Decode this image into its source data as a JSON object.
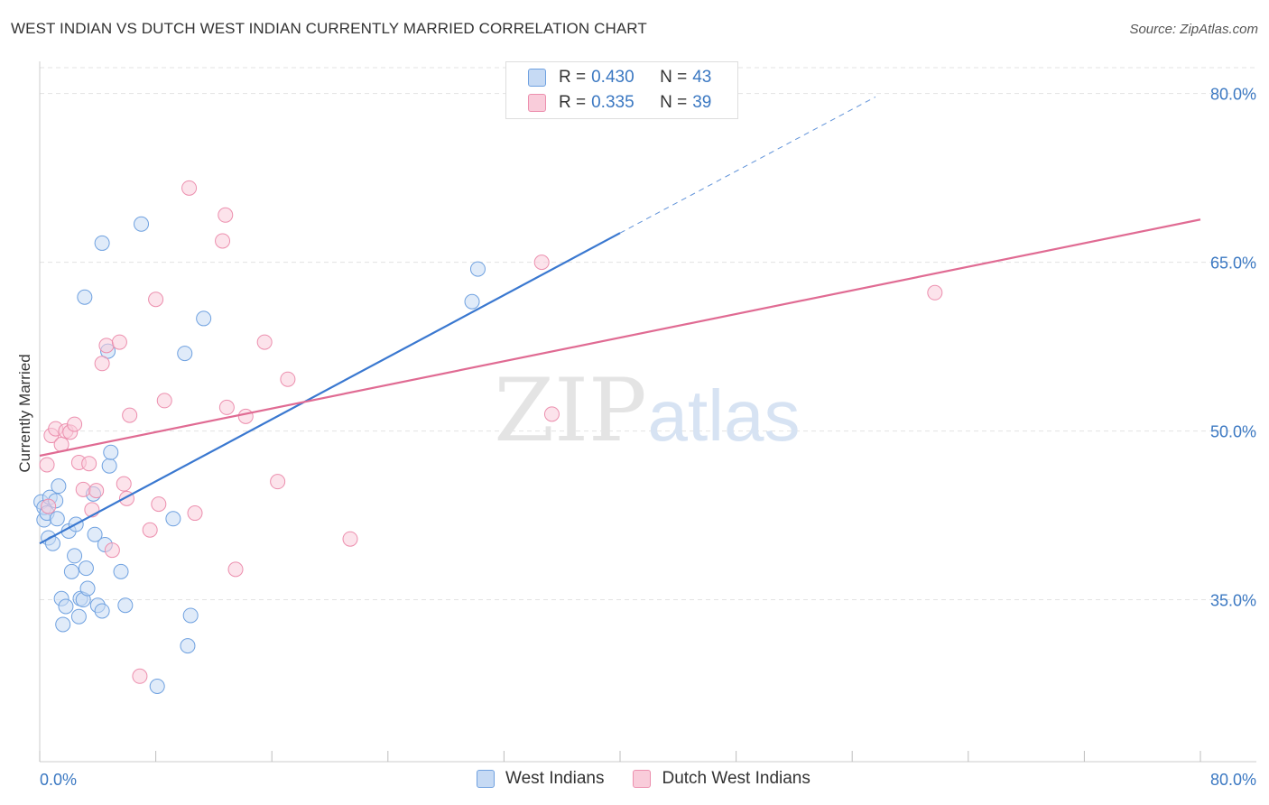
{
  "title": "WEST INDIAN VS DUTCH WEST INDIAN CURRENTLY MARRIED CORRELATION CHART",
  "source": "Source: ZipAtlas.com",
  "watermark": {
    "zip": "ZIP",
    "atlas": "atlas"
  },
  "legend": {
    "r_label": "R =",
    "n_label": "N =",
    "rows": [
      {
        "r": "0.430",
        "n": "43",
        "fill": "#c6daf4",
        "stroke": "#6fa1e0"
      },
      {
        "r": "0.335",
        "n": "39",
        "fill": "#f9ccda",
        "stroke": "#ec8fae"
      }
    ]
  },
  "bottom_legend": [
    {
      "label": "West Indians",
      "fill": "#c6daf4",
      "stroke": "#6fa1e0"
    },
    {
      "label": "Dutch West Indians",
      "fill": "#f9ccda",
      "stroke": "#ec8fae"
    }
  ],
  "chart_data": {
    "type": "scatter",
    "title": "WEST INDIAN VS DUTCH WEST INDIAN CURRENTLY MARRIED CORRELATION CHART",
    "xlabel": "",
    "ylabel": "Currently Married",
    "xlim": [
      0,
      80
    ],
    "ylim": [
      20.6,
      82.3
    ],
    "x_tick_labels": [
      "0.0%",
      "80.0%"
    ],
    "y_ticks": [
      35,
      50,
      65,
      80
    ],
    "y_tick_labels": [
      "35.0%",
      "50.0%",
      "65.0%",
      "80.0%"
    ],
    "grid": true,
    "series": [
      {
        "name": "West Indians",
        "color": "#3a78d0",
        "fill": "#c6daf4",
        "stroke": "#6fa1e0",
        "trend": {
          "x0": 0,
          "y0": 40.0,
          "x1": 40,
          "y1": 67.6,
          "dash_to_x": 57.6,
          "dash_to_y": 79.7
        },
        "points": [
          [
            0.1,
            43.7
          ],
          [
            0.3,
            42.1
          ],
          [
            0.3,
            43.2
          ],
          [
            0.5,
            42.7
          ],
          [
            0.6,
            40.5
          ],
          [
            0.7,
            44.1
          ],
          [
            0.9,
            40.0
          ],
          [
            1.1,
            43.8
          ],
          [
            1.2,
            42.2
          ],
          [
            1.3,
            45.1
          ],
          [
            1.5,
            35.1
          ],
          [
            1.6,
            32.8
          ],
          [
            1.8,
            34.4
          ],
          [
            2.0,
            41.1
          ],
          [
            2.2,
            37.5
          ],
          [
            2.4,
            38.9
          ],
          [
            2.5,
            41.7
          ],
          [
            2.7,
            33.5
          ],
          [
            2.8,
            35.1
          ],
          [
            3.0,
            35.0
          ],
          [
            3.2,
            37.8
          ],
          [
            3.3,
            36.0
          ],
          [
            3.7,
            44.4
          ],
          [
            3.8,
            40.8
          ],
          [
            4.0,
            34.5
          ],
          [
            4.3,
            34.0
          ],
          [
            4.5,
            39.9
          ],
          [
            4.7,
            57.1
          ],
          [
            4.8,
            46.9
          ],
          [
            4.9,
            48.1
          ],
          [
            5.6,
            37.5
          ],
          [
            5.9,
            34.5
          ],
          [
            3.1,
            61.9
          ],
          [
            4.3,
            66.7
          ],
          [
            7.0,
            68.4
          ],
          [
            8.1,
            27.3
          ],
          [
            9.2,
            42.2
          ],
          [
            10.0,
            56.9
          ],
          [
            10.2,
            30.9
          ],
          [
            10.4,
            33.6
          ],
          [
            11.3,
            60.0
          ],
          [
            29.8,
            61.5
          ],
          [
            30.2,
            64.4
          ]
        ]
      },
      {
        "name": "Dutch West Indians",
        "color": "#e06b93",
        "fill": "#f9ccda",
        "stroke": "#ec8fae",
        "trend": {
          "x0": 0,
          "y0": 47.8,
          "x1": 80,
          "y1": 68.8
        },
        "points": [
          [
            0.5,
            47.0
          ],
          [
            0.6,
            43.3
          ],
          [
            0.8,
            49.6
          ],
          [
            1.1,
            50.2
          ],
          [
            1.5,
            48.8
          ],
          [
            1.8,
            50.0
          ],
          [
            2.1,
            49.9
          ],
          [
            2.4,
            50.6
          ],
          [
            2.7,
            47.2
          ],
          [
            3.0,
            44.8
          ],
          [
            3.4,
            47.1
          ],
          [
            3.6,
            43.0
          ],
          [
            3.9,
            44.7
          ],
          [
            4.3,
            56.0
          ],
          [
            4.6,
            57.6
          ],
          [
            5.0,
            39.4
          ],
          [
            5.5,
            57.9
          ],
          [
            5.8,
            45.3
          ],
          [
            6.0,
            44.0
          ],
          [
            6.2,
            51.4
          ],
          [
            6.9,
            28.2
          ],
          [
            7.6,
            41.2
          ],
          [
            8.0,
            61.7
          ],
          [
            8.2,
            43.5
          ],
          [
            8.6,
            52.7
          ],
          [
            10.3,
            71.6
          ],
          [
            10.7,
            42.7
          ],
          [
            12.6,
            66.9
          ],
          [
            12.8,
            69.2
          ],
          [
            12.9,
            52.1
          ],
          [
            13.5,
            37.7
          ],
          [
            14.2,
            51.3
          ],
          [
            15.5,
            57.9
          ],
          [
            16.4,
            45.5
          ],
          [
            17.1,
            54.6
          ],
          [
            21.4,
            40.4
          ],
          [
            34.6,
            65.0
          ],
          [
            35.3,
            51.5
          ],
          [
            61.7,
            62.3
          ]
        ]
      }
    ]
  }
}
